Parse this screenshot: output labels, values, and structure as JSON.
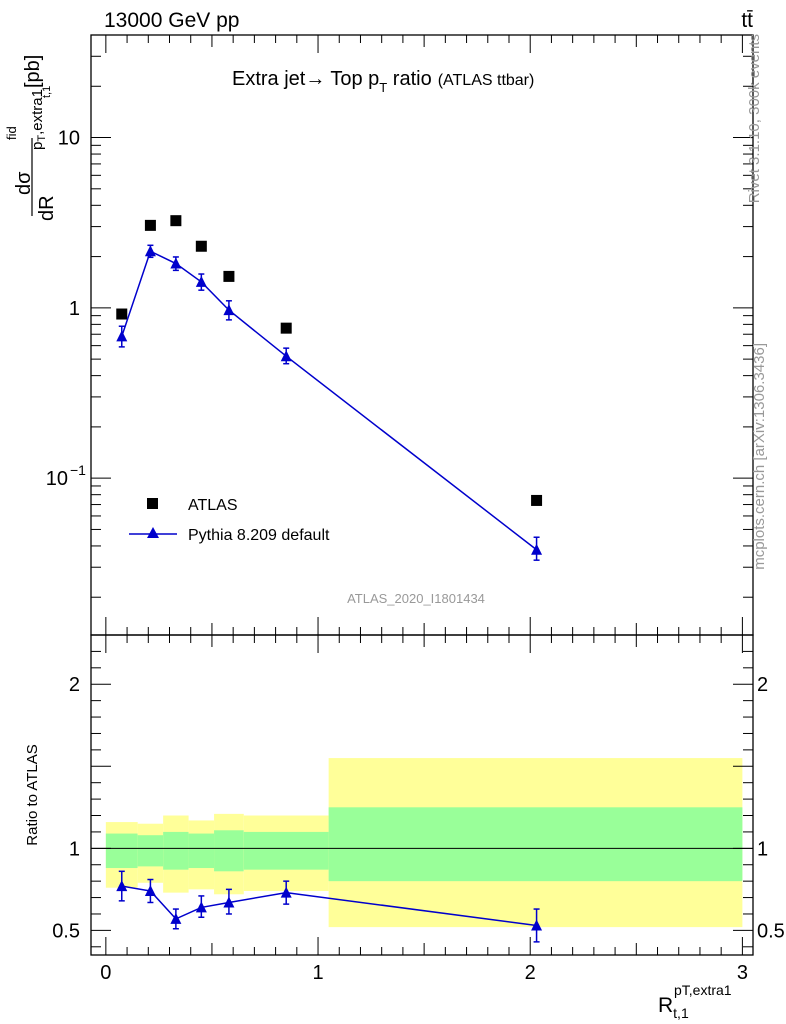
{
  "header": {
    "energy_label": "13000 GeV pp",
    "process_label": "tt̄"
  },
  "side_labels": {
    "rivet": "Rivet 3.1.10,  300k events",
    "mcplots": "mcplots.cern.ch [arXiv:1306.3436]"
  },
  "watermark": "ATLAS_2020_I1801434",
  "chart_data": [
    {
      "type": "scatter",
      "panel": "main",
      "title_main": "Extra jet",
      "title_arrow": "→",
      "title_top": "Top p",
      "title_top_sub": "T",
      "title_ratio": " ratio",
      "title_small": "(ATLAS ttbar)",
      "ylabel": {
        "d_top": "d",
        "sigma": "σ",
        "fid": "fid",
        "d_bottom": "dR",
        "sub": "p",
        "sub_small": "T",
        "sub_rest": ",extra1",
        "sub2": "t,1",
        "unit": "[pb]"
      },
      "y_scale": "log",
      "ylim": [
        0.012,
        40
      ],
      "xlim": [
        -0.07,
        3.05
      ],
      "y_tick_labels": [
        {
          "value": 10,
          "label": "10"
        },
        {
          "value": 1,
          "label": "1"
        },
        {
          "value": 0.1,
          "label": "10",
          "exp": "−1"
        }
      ],
      "legend": {
        "position": "bottom-left",
        "entries": [
          "ATLAS",
          "Pythia 8.209 default"
        ]
      },
      "series": [
        {
          "name": "ATLAS",
          "marker": "square",
          "color": "#000000",
          "x": [
            0.075,
            0.21,
            0.33,
            0.45,
            0.58,
            0.85,
            2.03
          ],
          "y": [
            0.92,
            3.05,
            3.25,
            2.3,
            1.53,
            0.76,
            0.074
          ]
        },
        {
          "name": "Pythia 8.209 default",
          "marker": "triangle",
          "color": "#0000cc",
          "line": true,
          "x": [
            0.075,
            0.21,
            0.33,
            0.45,
            0.58,
            0.85,
            2.03
          ],
          "y": [
            0.68,
            2.15,
            1.82,
            1.42,
            0.97,
            0.52,
            0.038
          ],
          "y_err": [
            [
              0.59,
              0.78
            ],
            [
              1.98,
              2.33
            ],
            [
              1.66,
              1.99
            ],
            [
              1.27,
              1.58
            ],
            [
              0.85,
              1.1
            ],
            [
              0.47,
              0.58
            ],
            [
              0.033,
              0.045
            ]
          ]
        }
      ]
    },
    {
      "type": "scatter",
      "panel": "ratio",
      "ylabel": "Ratio to ATLAS",
      "xlabel_main": "R",
      "xlabel_sub": "t,1",
      "xlabel_sup": "pT,extra1",
      "ylim": [
        0.35,
        2.3
      ],
      "xlim": [
        -0.07,
        3.05
      ],
      "reference_line": 1,
      "x_tick_labels": [
        "0",
        "1",
        "2",
        "3"
      ],
      "y_tick_labels": [
        "0.5",
        "1",
        "2"
      ],
      "bins": [
        0.0,
        0.15,
        0.27,
        0.39,
        0.51,
        0.65,
        1.05,
        3.0
      ],
      "yellow_band": {
        "color": "#ffff99",
        "lo": [
          0.76,
          0.79,
          0.73,
          0.75,
          0.72,
          0.74,
          0.52
        ],
        "hi": [
          1.16,
          1.15,
          1.2,
          1.17,
          1.21,
          1.2,
          1.55
        ]
      },
      "green_band": {
        "color": "#99ff99",
        "lo": [
          0.88,
          0.89,
          0.87,
          0.88,
          0.86,
          0.87,
          0.8
        ],
        "hi": [
          1.09,
          1.08,
          1.1,
          1.09,
          1.11,
          1.1,
          1.25
        ]
      },
      "series": [
        {
          "name": "Pythia 8.209 default",
          "color": "#0000cc",
          "x": [
            0.075,
            0.21,
            0.33,
            0.45,
            0.58,
            0.85,
            2.03
          ],
          "y": [
            0.77,
            0.74,
            0.57,
            0.64,
            0.67,
            0.73,
            0.53
          ],
          "y_err": [
            [
              0.68,
              0.86
            ],
            [
              0.67,
              0.81
            ],
            [
              0.51,
              0.63
            ],
            [
              0.58,
              0.71
            ],
            [
              0.6,
              0.75
            ],
            [
              0.66,
              0.8
            ],
            [
              0.43,
              0.63
            ]
          ]
        }
      ]
    }
  ]
}
